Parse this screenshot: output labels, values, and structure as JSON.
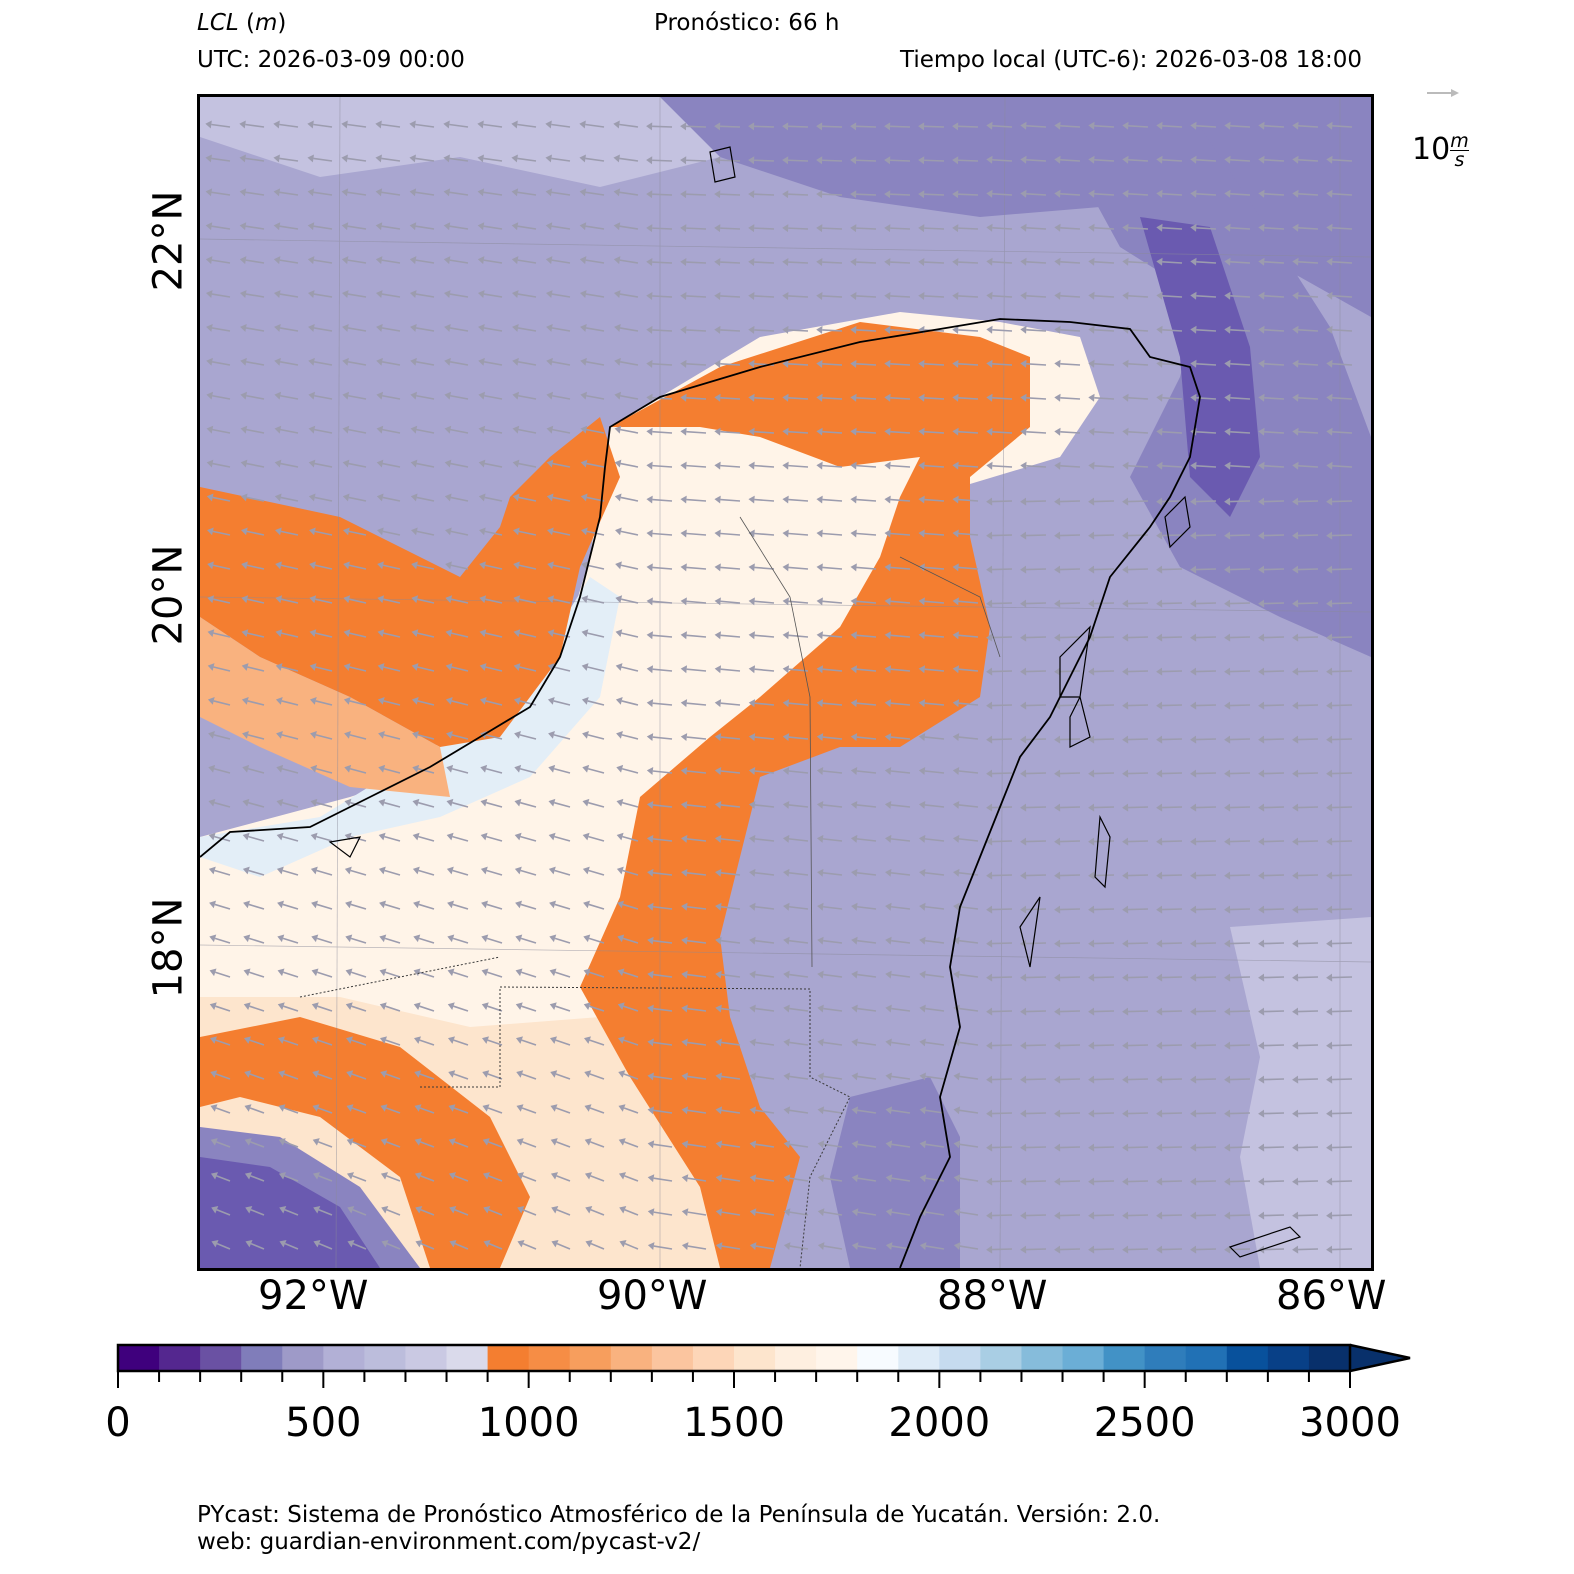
{
  "header": {
    "variable": "LCL",
    "unit": "(m)",
    "forecast": "Pronóstico: 66 h",
    "utc": "UTC:  2026-03-09 00:00",
    "local_time": "Tiempo local (UTC-6): 2026-03-08 18:00"
  },
  "wind_key": {
    "magnitude": "10",
    "unit_num": "m",
    "unit_den": "s"
  },
  "map": {
    "lat_labels": [
      "22°N",
      "20°N",
      "18°N"
    ],
    "lon_labels": [
      "92°W",
      "90°W",
      "88°W",
      "86°W"
    ],
    "colors": {
      "ocean": "#a9a6d0",
      "ocean_dark": "#8a84c0",
      "ocean_darkest": "#6a5ab0",
      "ocean_light": "#c4c2e0",
      "orange": "#f47e30",
      "orange_light": "#f9b27f",
      "peach": "#fde5cd",
      "cream": "#fff4e8",
      "pale_blue": "#e3eef7",
      "coast": "#000000",
      "arrow": "#9c9cae"
    }
  },
  "colorbar": {
    "ticks": [
      "0",
      "500",
      "1000",
      "1500",
      "2000",
      "2500",
      "3000"
    ],
    "min": 0,
    "max": 3000,
    "step": 100,
    "extend": "max",
    "colors": [
      "#3f007d",
      "#54278f",
      "#6a51a3",
      "#807dba",
      "#9e9ac8",
      "#b2b0d6",
      "#bcbddc",
      "#cac9e3",
      "#dadaeb",
      "#f47e30",
      "#f68d45",
      "#f79e5d",
      "#f9b27f",
      "#fbc59f",
      "#fdd6b8",
      "#fde5cd",
      "#feefe0",
      "#fff5eb",
      "#f7fbff",
      "#deebf7",
      "#c6dbef",
      "#a9cee4",
      "#86bcdb",
      "#6baed6",
      "#4292c6",
      "#2f7dbb",
      "#2171b5",
      "#08519c",
      "#084087",
      "#08306b"
    ]
  },
  "footer": {
    "line1": "PYcast: Sistema de Pronóstico Atmosférico de la Península de Yucatán. Versión: 2.0.",
    "line2": "web: guardian-environment.com/pycast-v2/"
  }
}
